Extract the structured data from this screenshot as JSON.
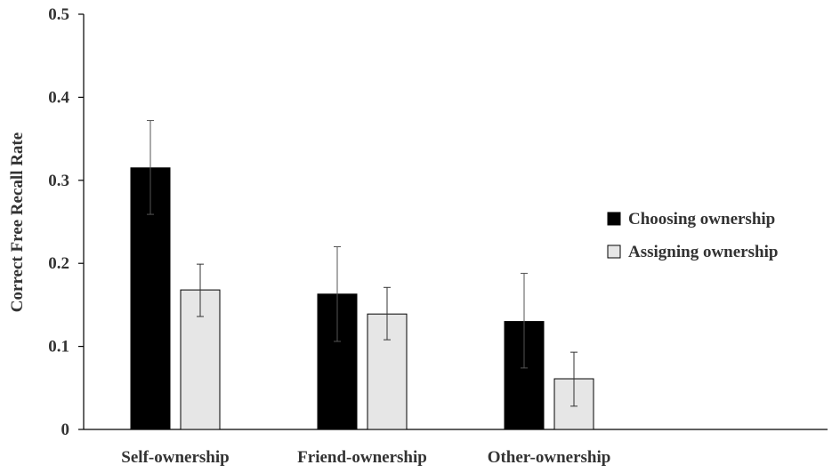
{
  "chart_data": {
    "type": "bar",
    "title": "",
    "xlabel": "",
    "ylabel": "Correct Free Recall Rate",
    "ylim": [
      0,
      0.5
    ],
    "yticks": [
      {
        "value": 0,
        "label": "0"
      },
      {
        "value": 0.1,
        "label": "0.1"
      },
      {
        "value": 0.2,
        "label": "0.2"
      },
      {
        "value": 0.3,
        "label": "0.3"
      },
      {
        "value": 0.4,
        "label": "0.4"
      },
      {
        "value": 0.5,
        "label": "0.5"
      }
    ],
    "categories": [
      "Self-ownership",
      "Friend-ownership",
      "Other-ownership"
    ],
    "series": [
      {
        "name": "Choosing ownership",
        "color": "#000000",
        "values": [
          0.315,
          0.163,
          0.13
        ],
        "error_low": [
          0.259,
          0.106,
          0.074
        ],
        "error_high": [
          0.372,
          0.22,
          0.188
        ]
      },
      {
        "name": "Assigning ownership",
        "color": "#e6e6e6",
        "values": [
          0.168,
          0.139,
          0.061
        ],
        "error_low": [
          0.136,
          0.108,
          0.028
        ],
        "error_high": [
          0.199,
          0.171,
          0.093
        ]
      }
    ],
    "grid": false,
    "legend_position": "right"
  }
}
